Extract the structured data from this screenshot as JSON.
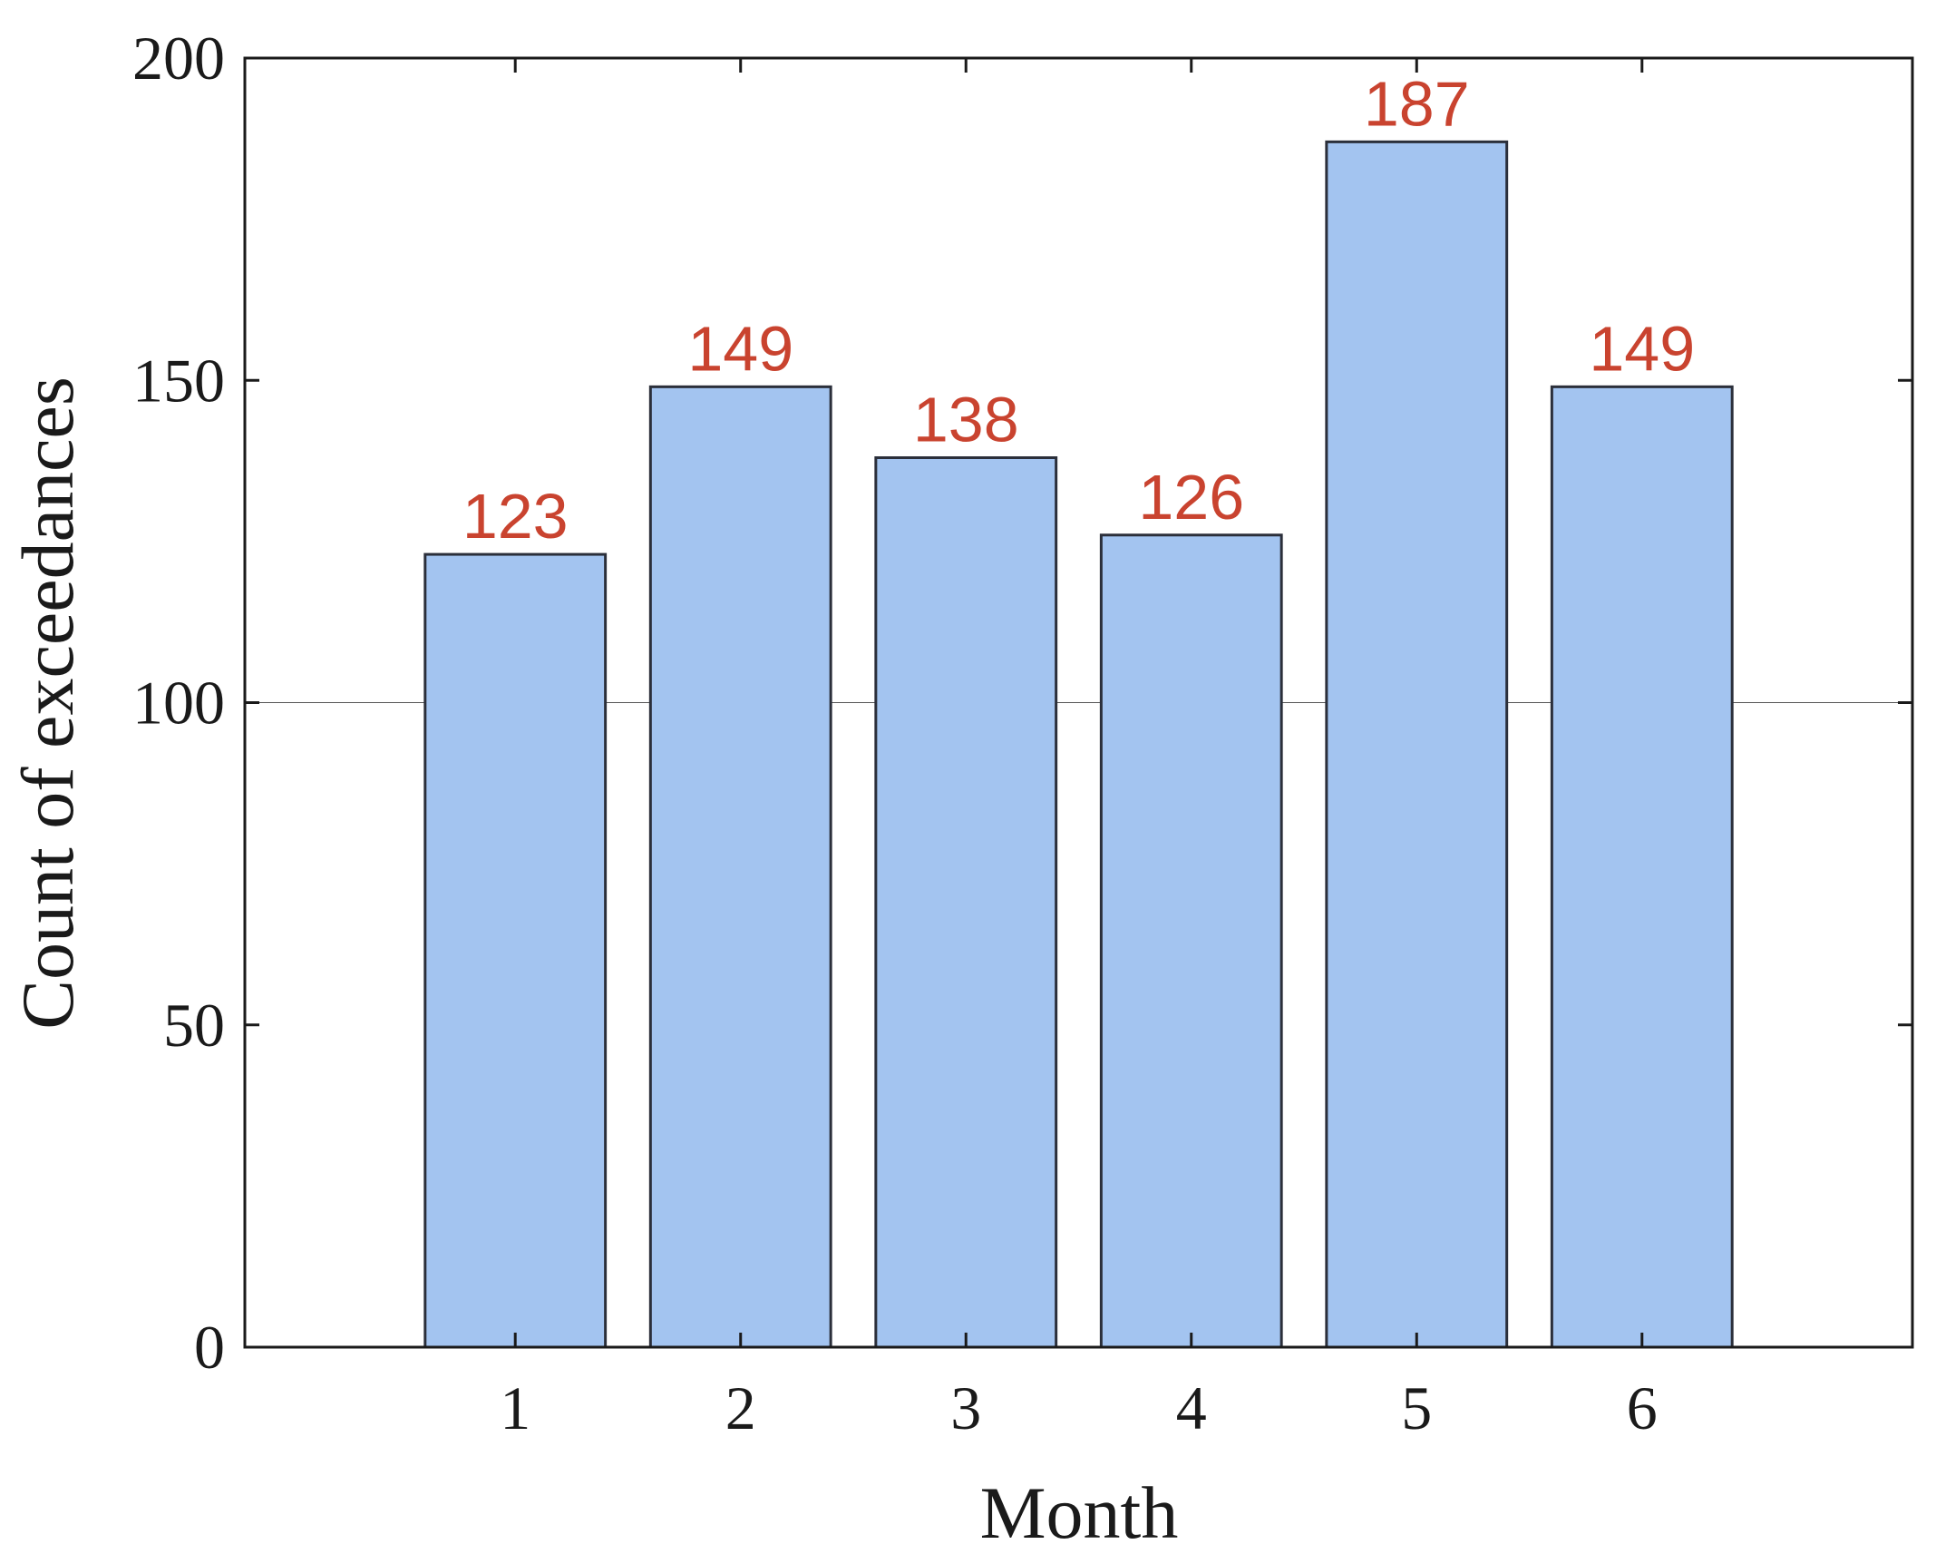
{
  "chart_data": {
    "type": "bar",
    "x_label": "Month",
    "y_label": "Count of exceedances",
    "x": [
      1,
      2,
      3,
      4,
      5,
      6
    ],
    "values": [
      123,
      149,
      138,
      126,
      187,
      149
    ],
    "color": "#a3c4f0",
    "edge_color": "#2b2f3a",
    "value_label_color": "#c9432f",
    "bar_width": 0.8,
    "xlim": [
      -0.2,
      7.2
    ],
    "xticks": [
      1,
      2,
      3,
      4,
      5,
      6
    ],
    "ylim": [
      0,
      200
    ],
    "yticks": [
      0,
      50,
      100,
      150,
      200
    ],
    "reference_line": 100,
    "grid": false
  }
}
